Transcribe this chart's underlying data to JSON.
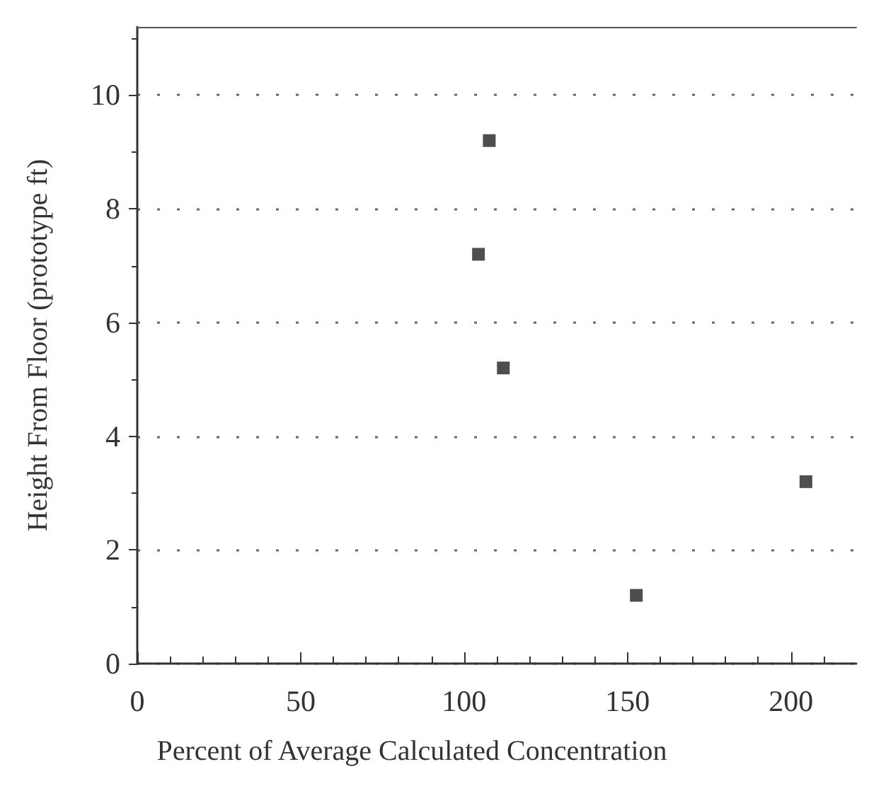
{
  "chart_data": {
    "type": "scatter",
    "xlabel": "Percent of Average Calculated Concentration",
    "ylabel": "Height From Floor (prototype ft)",
    "x": [
      107.7,
      104.4,
      112,
      152.7,
      204.6
    ],
    "values": [
      9.2,
      7.2,
      5.2,
      1.2,
      3.2
    ],
    "color": "#222222",
    "marker": "square",
    "xlim": [
      0,
      220
    ],
    "xticks": [
      0,
      50,
      100,
      150,
      200
    ],
    "ylim": [
      0,
      11.2
    ],
    "yticks": [
      0,
      2,
      4,
      6,
      8,
      10
    ],
    "grid": "y"
  }
}
